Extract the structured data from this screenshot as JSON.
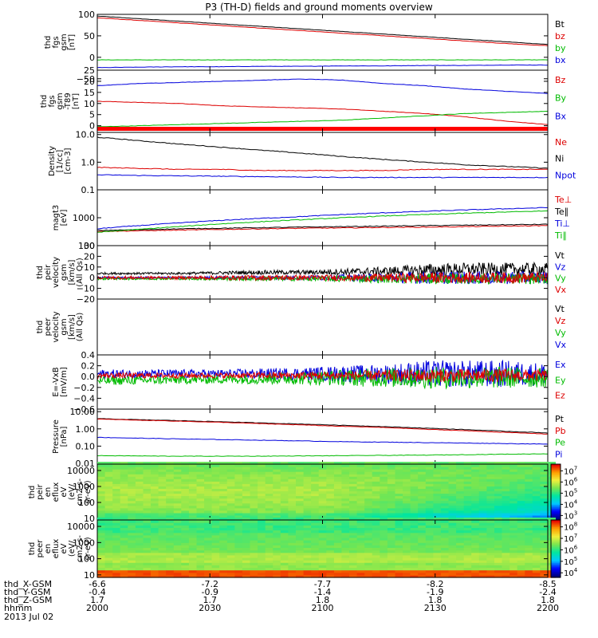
{
  "chart_data": {
    "title": "P3 (TH-D) fields and ground moments overview",
    "date": "2013 Jul 02",
    "x_ticks": [
      "2000",
      "2030",
      "2100",
      "2130",
      "2200"
    ],
    "ephemeris": [
      {
        "label": "thd_X-GSM",
        "values": [
          "-6.6",
          "-7.2",
          "-7.7",
          "-8.2",
          "-8.5"
        ]
      },
      {
        "label": "thd_Y-GSM",
        "values": [
          "-0.4",
          "-0.9",
          "-1.4",
          "-1.9",
          "-2.4"
        ]
      },
      {
        "label": "thd_Z-GSM",
        "values": [
          "1.7",
          "1.7",
          "1.8",
          "1.8",
          "1.8"
        ]
      },
      {
        "label": "hhmm",
        "values": []
      }
    ],
    "panels": [
      {
        "id": "fgs",
        "type": "line",
        "ylabel": [
          "thd",
          "fgs",
          "gsm",
          "[nT]"
        ],
        "ylim": [
          -30,
          100
        ],
        "yticks": [
          {
            "v": 100,
            "t": "100"
          },
          {
            "v": 50,
            "t": "50"
          },
          {
            "v": 0,
            "t": "0"
          },
          {
            "v": -50,
            "t": "−50"
          }
        ],
        "log": false,
        "series": [
          {
            "name": "Bt",
            "color": "#000000",
            "values": [
              96,
              90,
              84,
              78,
              72,
              66,
              60,
              54,
              48,
              42,
              36,
              30
            ]
          },
          {
            "name": "bz",
            "color": "#dd0000",
            "values": [
              92,
              86,
              80,
              74,
              68,
              62,
              56,
              50,
              44,
              38,
              32,
              27
            ]
          },
          {
            "name": "by",
            "color": "#00bb00",
            "values": [
              -6,
              -6,
              -6,
              -6,
              -6,
              -6,
              -6,
              -6,
              -6,
              -6,
              -6,
              -6
            ]
          },
          {
            "name": "bx",
            "color": "#0000dd",
            "values": [
              -24,
              -23,
              -22,
              -22,
              -21,
              -21,
              -20,
              -20,
              -19,
              -19,
              -18,
              -18
            ]
          }
        ]
      },
      {
        "id": "t89",
        "type": "line",
        "ylabel": [
          "thd",
          "fgs",
          "gsm",
          "-T89",
          "[nT]"
        ],
        "ylim": [
          -3,
          25
        ],
        "yticks": [
          {
            "v": 25,
            "t": "25"
          },
          {
            "v": 20,
            "t": "20"
          },
          {
            "v": 15,
            "t": "15"
          },
          {
            "v": 10,
            "t": "10"
          },
          {
            "v": 5,
            "t": "5"
          },
          {
            "v": 0,
            "t": "0"
          }
        ],
        "log": false,
        "series": [
          {
            "name": "Bz",
            "color": "#dd0000",
            "values": [
              11,
              10.5,
              10,
              9,
              8.5,
              8,
              7.5,
              6.5,
              5.5,
              4,
              2,
              0.5
            ]
          },
          {
            "name": "By",
            "color": "#00bb00",
            "values": [
              -0.5,
              0,
              0.5,
              1,
              1.5,
              2,
              2.5,
              3.5,
              4.5,
              5.5,
              6,
              6.5
            ]
          },
          {
            "name": "Bx",
            "color": "#0000dd",
            "values": [
              18,
              19,
              19.5,
              20,
              20.5,
              21,
              20.5,
              19,
              18,
              16.5,
              15.5,
              14.5
            ]
          }
        ]
      },
      {
        "id": "density",
        "type": "line",
        "ylabel": [
          "Density",
          "[1/cc]",
          "[cm-3]"
        ],
        "ylim": [
          0.1,
          12
        ],
        "yticks": [
          {
            "v": 10,
            "t": "10.0"
          },
          {
            "v": 1,
            "t": "1.0"
          },
          {
            "v": 0.1,
            "t": "0.1"
          }
        ],
        "log": true,
        "series": [
          {
            "name": "Ne",
            "color": "#dd0000",
            "values": [
              0.65,
              0.6,
              0.55,
              0.55,
              0.5,
              0.5,
              0.5,
              0.5,
              0.55,
              0.55,
              0.55,
              0.55
            ]
          },
          {
            "name": "Ni",
            "color": "#000000",
            "values": [
              8,
              6,
              4.5,
              3.5,
              2.7,
              2.1,
              1.6,
              1.25,
              1,
              0.8,
              0.7,
              0.6
            ]
          },
          {
            "name": "Npot",
            "color": "#0000dd",
            "values": [
              0.35,
              0.33,
              0.32,
              0.31,
              0.3,
              0.29,
              0.28,
              0.28,
              0.28,
              0.28,
              0.28,
              0.28
            ]
          }
        ]
      },
      {
        "id": "temp",
        "type": "line",
        "ylabel": [
          "magt3",
          "[eV]"
        ],
        "ylim": [
          100,
          10000
        ],
        "yticks": [
          {
            "v": 1000,
            "t": "1000"
          },
          {
            "v": 100,
            "t": "100"
          }
        ],
        "log": true,
        "series": [
          {
            "name": "Te⊥",
            "color": "#dd0000",
            "values": [
              320,
              340,
              360,
              380,
              400,
              420,
              430,
              450,
              460,
              480,
              500,
              520
            ]
          },
          {
            "name": "Te∥",
            "color": "#000000",
            "values": [
              350,
              370,
              400,
              420,
              440,
              460,
              480,
              500,
              520,
              540,
              560,
              580
            ]
          },
          {
            "name": "Ti⊥",
            "color": "#0000dd",
            "values": [
              400,
              520,
              650,
              800,
              950,
              1100,
              1300,
              1500,
              1700,
              1900,
              2100,
              2300
            ]
          },
          {
            "name": "Ti∥",
            "color": "#00bb00",
            "values": [
              300,
              380,
              480,
              600,
              720,
              850,
              1000,
              1150,
              1300,
              1450,
              1600,
              1750
            ]
          }
        ]
      },
      {
        "id": "peir_vel",
        "type": "line",
        "ylabel": [
          "thd",
          "peir",
          "velocity",
          "gsm",
          "[km/s]",
          "(All Qs)"
        ],
        "ylim": [
          -20,
          30
        ],
        "yticks": [
          {
            "v": 30,
            "t": "30"
          },
          {
            "v": 20,
            "t": "20"
          },
          {
            "v": 10,
            "t": "10"
          },
          {
            "v": 0,
            "t": "0"
          },
          {
            "v": -10,
            "t": "−10"
          },
          {
            "v": -20,
            "t": "−20"
          }
        ],
        "log": false,
        "noisy": true,
        "series": [
          {
            "name": "Vt",
            "color": "#000000",
            "values": [
              4,
              4,
              4,
              4.5,
              5,
              5,
              5.5,
              6,
              7,
              8,
              8,
              8
            ],
            "amp": [
              1,
              1,
              1,
              1.5,
              2,
              2,
              3,
              4,
              6,
              6,
              6,
              6
            ]
          },
          {
            "name": "Vz",
            "color": "#0000dd",
            "values": [
              0,
              0,
              0,
              0,
              0,
              0,
              0,
              0,
              0,
              0,
              0,
              0
            ],
            "amp": [
              1,
              1,
              1,
              1.5,
              2,
              2,
              3,
              4,
              6,
              6,
              6,
              6
            ]
          },
          {
            "name": "Vy",
            "color": "#00bb00",
            "values": [
              -1,
              -1,
              -1,
              -1,
              -1,
              -1,
              -1,
              -1,
              -1,
              -1,
              -1,
              -1
            ],
            "amp": [
              1,
              1,
              1,
              1.5,
              2,
              2,
              3,
              4,
              5,
              5,
              5,
              5
            ]
          },
          {
            "name": "Vx",
            "color": "#dd0000",
            "values": [
              0,
              0,
              0,
              0,
              0,
              0,
              0,
              0,
              0,
              0,
              0,
              0
            ],
            "amp": [
              1.5,
              1.5,
              1.5,
              2,
              2.5,
              2.5,
              3,
              4,
              5,
              5,
              5,
              5
            ]
          }
        ]
      },
      {
        "id": "peer_vel",
        "type": "line",
        "ylabel": [
          "thd",
          "peer",
          "velocity",
          "gsm",
          "[km/s]",
          "(All Qs)"
        ],
        "ylim": [
          -0.1,
          1.1
        ],
        "yticks": [],
        "log": false,
        "series": [],
        "legend_only": [
          {
            "name": "Vt",
            "color": "#000000"
          },
          {
            "name": "Vz",
            "color": "#dd0000"
          },
          {
            "name": "Vy",
            "color": "#00bb00"
          },
          {
            "name": "Vx",
            "color": "#0000dd"
          }
        ]
      },
      {
        "id": "efield",
        "type": "line",
        "ylabel": [
          "E=-VxB",
          "[mV/m]"
        ],
        "ylim": [
          -0.6,
          0.4
        ],
        "yticks": [
          {
            "v": 0.4,
            "t": "0.4"
          },
          {
            "v": 0.2,
            "t": "0.2"
          },
          {
            "v": 0,
            "t": "0.0"
          },
          {
            "v": -0.2,
            "t": "−0.2"
          },
          {
            "v": -0.4,
            "t": "−0.4"
          },
          {
            "v": -0.6,
            "t": "−0.6"
          }
        ],
        "log": false,
        "noisy": true,
        "series": [
          {
            "name": "Ex",
            "color": "#0000dd",
            "values": [
              0.05,
              0.05,
              0.05,
              0.05,
              0.05,
              0.05,
              0.05,
              0.05,
              0.05,
              0.05,
              0.05,
              0.05
            ],
            "amp": [
              0.08,
              0.08,
              0.08,
              0.08,
              0.1,
              0.12,
              0.15,
              0.18,
              0.25,
              0.25,
              0.25,
              0.2
            ]
          },
          {
            "name": "Ey",
            "color": "#00bb00",
            "values": [
              -0.08,
              -0.07,
              -0.06,
              -0.05,
              -0.04,
              -0.03,
              -0.02,
              -0.02,
              -0.02,
              -0.02,
              -0.02,
              -0.02
            ],
            "amp": [
              0.08,
              0.08,
              0.08,
              0.08,
              0.1,
              0.12,
              0.15,
              0.18,
              0.2,
              0.2,
              0.2,
              0.18
            ]
          },
          {
            "name": "Ez",
            "color": "#dd0000",
            "values": [
              0.02,
              0.02,
              0.02,
              0.02,
              0.02,
              0.02,
              0.02,
              0.02,
              0.02,
              0.02,
              0.02,
              0.02
            ],
            "amp": [
              0.05,
              0.05,
              0.05,
              0.05,
              0.06,
              0.07,
              0.08,
              0.1,
              0.12,
              0.12,
              0.12,
              0.1
            ]
          }
        ]
      },
      {
        "id": "pressure",
        "type": "line",
        "ylabel": [
          "Pressure",
          "[nPa]"
        ],
        "ylim": [
          0.009,
          14
        ],
        "yticks": [
          {
            "v": 10,
            "t": "10.00"
          },
          {
            "v": 1,
            "t": "1.00"
          },
          {
            "v": 0.1,
            "t": "0.10"
          },
          {
            "v": 0.01,
            "t": "0.01"
          }
        ],
        "log": true,
        "series": [
          {
            "name": "Pt",
            "color": "#000000",
            "values": [
              3.9,
              3.4,
              3.0,
              2.6,
              2.2,
              1.9,
              1.6,
              1.35,
              1.1,
              0.9,
              0.72,
              0.58
            ]
          },
          {
            "name": "Pb",
            "color": "#dd0000",
            "values": [
              3.7,
              3.2,
              2.8,
              2.4,
              2.0,
              1.7,
              1.4,
              1.2,
              0.95,
              0.78,
              0.62,
              0.5
            ]
          },
          {
            "name": "Pe",
            "color": "#00bb00",
            "values": [
              0.028,
              0.027,
              0.026,
              0.026,
              0.026,
              0.027,
              0.028,
              0.029,
              0.03,
              0.032,
              0.034,
              0.036
            ]
          },
          {
            "name": "Pi",
            "color": "#0000dd",
            "values": [
              0.32,
              0.29,
              0.26,
              0.24,
              0.22,
              0.2,
              0.18,
              0.17,
              0.16,
              0.15,
              0.14,
              0.13
            ]
          }
        ]
      },
      {
        "id": "peir_spec",
        "type": "spectrogram",
        "ylabel": [
          "thd",
          "peir",
          "en",
          "eflux",
          "eV",
          "(eV/",
          "cm2-s-",
          "sr-eV)"
        ],
        "ylim": [
          8,
          25000
        ],
        "yticks": [
          {
            "v": 10000,
            "t": "10000"
          },
          {
            "v": 1000,
            "t": "1000"
          },
          {
            "v": 100,
            "t": "100"
          },
          {
            "v": 10,
            "t": "10"
          }
        ],
        "log": true,
        "colorbar": {
          "labels": [
            {
              "e": 3
            },
            {
              "e": 4
            },
            {
              "e": 5
            },
            {
              "e": 6
            },
            {
              "e": 7
            }
          ],
          "range": [
            2.6,
            7.6
          ]
        }
      },
      {
        "id": "peer_spec",
        "type": "spectrogram",
        "ylabel": [
          "thd",
          "peer",
          "en",
          "eflux",
          "eV",
          "(eV/",
          "cm2-s-",
          "sr-eV)"
        ],
        "ylim": [
          7,
          25000
        ],
        "yticks": [
          {
            "v": 10000,
            "t": "10000"
          },
          {
            "v": 1000,
            "t": "1000"
          },
          {
            "v": 100,
            "t": "100"
          },
          {
            "v": 10,
            "t": "10"
          }
        ],
        "log": true,
        "colorbar": {
          "labels": [
            {
              "e": 4
            },
            {
              "e": 5
            },
            {
              "e": 6
            },
            {
              "e": 7
            },
            {
              "e": 8
            }
          ],
          "range": [
            3.6,
            8.6
          ]
        }
      }
    ]
  }
}
